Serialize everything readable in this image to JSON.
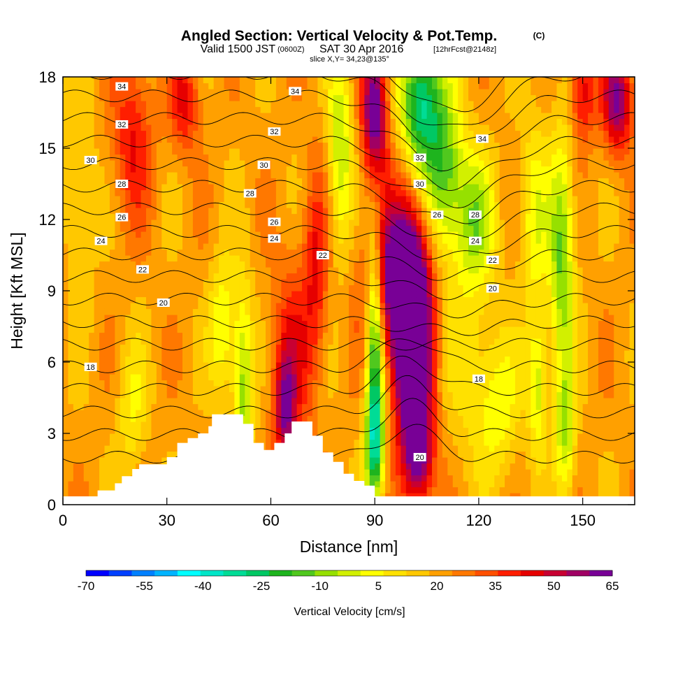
{
  "title": {
    "main": "Angled Section: Vertical Velocity & Pot.Temp.",
    "unit_tag": "(C)",
    "valid_prefix": "Valid 1500 JST",
    "utc_tag": "(0600Z)",
    "valid_date": "SAT 30 Apr 2016",
    "fcst_tag": "[12hrFcst@2148z]",
    "slice": "slice X,Y= 34,23@135°"
  },
  "colors": {
    "palette": [
      "#0000ff",
      "#0040ff",
      "#0080ff",
      "#00b4ff",
      "#00ffff",
      "#00e6c8",
      "#00dc96",
      "#00c864",
      "#1eb41e",
      "#50c81e",
      "#96e000",
      "#d2f000",
      "#ffff00",
      "#ffe100",
      "#ffc800",
      "#ffa000",
      "#ff7800",
      "#ff5000",
      "#ff1e00",
      "#e60000",
      "#c80032",
      "#a00064",
      "#780096"
    ],
    "terrain": "#ffffff",
    "contour": "#000000"
  },
  "chart_data": {
    "type": "heatmap",
    "xlabel": "Distance [nm]",
    "ylabel": "Height [Kft MSL]",
    "xlim": [
      0,
      165
    ],
    "ylim": [
      0,
      18
    ],
    "xticks": [
      0,
      30,
      60,
      90,
      120,
      150
    ],
    "yticks": [
      0,
      3,
      6,
      9,
      12,
      15,
      18
    ],
    "field": {
      "name": "Vertical Velocity",
      "units": "cm/s",
      "levels": [
        -70,
        -65,
        -60,
        -55,
        -50,
        -45,
        -40,
        -35,
        -30,
        -25,
        -20,
        -15,
        -10,
        -5,
        0,
        5,
        10,
        15,
        20,
        25,
        30,
        35,
        40,
        45,
        50,
        55,
        60,
        65
      ],
      "features": [
        {
          "x": 101,
          "y": 6.5,
          "value": 62,
          "sx": 3.5,
          "sy": 3.2
        },
        {
          "x": 96,
          "y": 9.5,
          "value": 38,
          "sx": 6,
          "sy": 2.5
        },
        {
          "x": 90,
          "y": 6.5,
          "value": -42,
          "sx": 1.8,
          "sy": 4
        },
        {
          "x": 90,
          "y": 2.5,
          "value": -25,
          "sx": 2,
          "sy": 1.5
        },
        {
          "x": 103,
          "y": 17,
          "value": -42,
          "sx": 4,
          "sy": 2
        },
        {
          "x": 110,
          "y": 14,
          "value": -30,
          "sx": 4,
          "sy": 2.5
        },
        {
          "x": 119,
          "y": 12,
          "value": -22,
          "sx": 4,
          "sy": 2
        },
        {
          "x": 90,
          "y": 16.5,
          "value": 42,
          "sx": 2.5,
          "sy": 2
        },
        {
          "x": 80,
          "y": 15,
          "value": -22,
          "sx": 2.5,
          "sy": 3
        },
        {
          "x": 52,
          "y": 5,
          "value": -25,
          "sx": 2,
          "sy": 3
        },
        {
          "x": 46,
          "y": 7.5,
          "value": -18,
          "sx": 2.5,
          "sy": 2
        },
        {
          "x": 144,
          "y": 10.5,
          "value": -28,
          "sx": 2.5,
          "sy": 3.5
        },
        {
          "x": 145,
          "y": 3,
          "value": -22,
          "sx": 2,
          "sy": 2
        },
        {
          "x": 137,
          "y": 5,
          "value": -20,
          "sx": 2,
          "sy": 2
        },
        {
          "x": 136,
          "y": 12,
          "value": -15,
          "sx": 3,
          "sy": 3
        },
        {
          "x": 66,
          "y": 6,
          "value": 18,
          "sx": 4,
          "sy": 3
        },
        {
          "x": 64,
          "y": 4,
          "value": 25,
          "sx": 2,
          "sy": 1.5
        },
        {
          "x": 73,
          "y": 10,
          "value": 18,
          "sx": 2.5,
          "sy": 3
        },
        {
          "x": 20,
          "y": 15.5,
          "value": 18,
          "sx": 4,
          "sy": 2.5
        },
        {
          "x": 35,
          "y": 17,
          "value": 20,
          "sx": 3,
          "sy": 1.5
        },
        {
          "x": 160,
          "y": 17,
          "value": 35,
          "sx": 3,
          "sy": 1.5
        },
        {
          "x": 150,
          "y": 17.5,
          "value": 22,
          "sx": 2.5,
          "sy": 1.5
        },
        {
          "x": 103,
          "y": 2,
          "value": 25,
          "sx": 3,
          "sy": 1.5
        },
        {
          "x": 20,
          "y": 4,
          "value": -12,
          "sx": 3,
          "sy": 2
        },
        {
          "x": 5,
          "y": 13,
          "value": -10,
          "sx": 3,
          "sy": 3
        },
        {
          "x": 126,
          "y": 4,
          "value": -14,
          "sx": 4,
          "sy": 2
        },
        {
          "x": 118,
          "y": 6,
          "value": -10,
          "sx": 5,
          "sy": 3
        }
      ],
      "background": 7
    },
    "contours": {
      "name": "Pot.Temp.",
      "units": "C",
      "levels": [
        16,
        17,
        18,
        19,
        20,
        21,
        22,
        23,
        24,
        25,
        26,
        27,
        28,
        29,
        30,
        31,
        32,
        33,
        34,
        35,
        36
      ],
      "labels": [
        {
          "text": "34",
          "x": 17,
          "y": 17.6
        },
        {
          "text": "34",
          "x": 67,
          "y": 17.4
        },
        {
          "text": "34",
          "x": 121,
          "y": 15.4
        },
        {
          "text": "32",
          "x": 17,
          "y": 16.0
        },
        {
          "text": "32",
          "x": 61,
          "y": 15.7
        },
        {
          "text": "32",
          "x": 103,
          "y": 14.6
        },
        {
          "text": "30",
          "x": 8,
          "y": 14.5
        },
        {
          "text": "30",
          "x": 58,
          "y": 14.3
        },
        {
          "text": "30",
          "x": 103,
          "y": 13.5
        },
        {
          "text": "28",
          "x": 17,
          "y": 13.5
        },
        {
          "text": "28",
          "x": 54,
          "y": 13.1
        },
        {
          "text": "28",
          "x": 119,
          "y": 12.2
        },
        {
          "text": "26",
          "x": 17,
          "y": 12.1
        },
        {
          "text": "26",
          "x": 61,
          "y": 11.9
        },
        {
          "text": "26",
          "x": 108,
          "y": 12.2
        },
        {
          "text": "24",
          "x": 11,
          "y": 11.1
        },
        {
          "text": "24",
          "x": 61,
          "y": 11.2
        },
        {
          "text": "24",
          "x": 119,
          "y": 11.1
        },
        {
          "text": "22",
          "x": 23,
          "y": 9.9
        },
        {
          "text": "22",
          "x": 75,
          "y": 10.5
        },
        {
          "text": "22",
          "x": 124,
          "y": 10.3
        },
        {
          "text": "20",
          "x": 29,
          "y": 8.5
        },
        {
          "text": "20",
          "x": 124,
          "y": 9.1
        },
        {
          "text": "20",
          "x": 103,
          "y": 2.0
        },
        {
          "text": "18",
          "x": 8,
          "y": 5.8
        },
        {
          "text": "18",
          "x": 120,
          "y": 5.3
        }
      ]
    },
    "terrain": {
      "x": [
        10,
        15,
        17,
        20,
        22,
        26,
        30,
        33,
        36,
        39,
        42,
        43,
        52,
        55,
        58,
        61,
        64,
        66,
        72,
        75,
        78,
        81,
        84,
        87,
        90
      ],
      "height": [
        0.6,
        0.9,
        1.2,
        1.5,
        1.7,
        1.7,
        2.0,
        2.6,
        2.8,
        3.0,
        3.3,
        3.8,
        3.4,
        2.6,
        2.3,
        2.6,
        3.0,
        3.5,
        2.9,
        2.2,
        1.8,
        1.3,
        1.0,
        0.8,
        0.5
      ]
    },
    "colorbar": {
      "title": "Vertical Velocity [cm/s]",
      "tick_labels": [
        "-70",
        "-55",
        "-40",
        "-25",
        "-10",
        "5",
        "20",
        "35",
        "50",
        "65"
      ]
    }
  }
}
